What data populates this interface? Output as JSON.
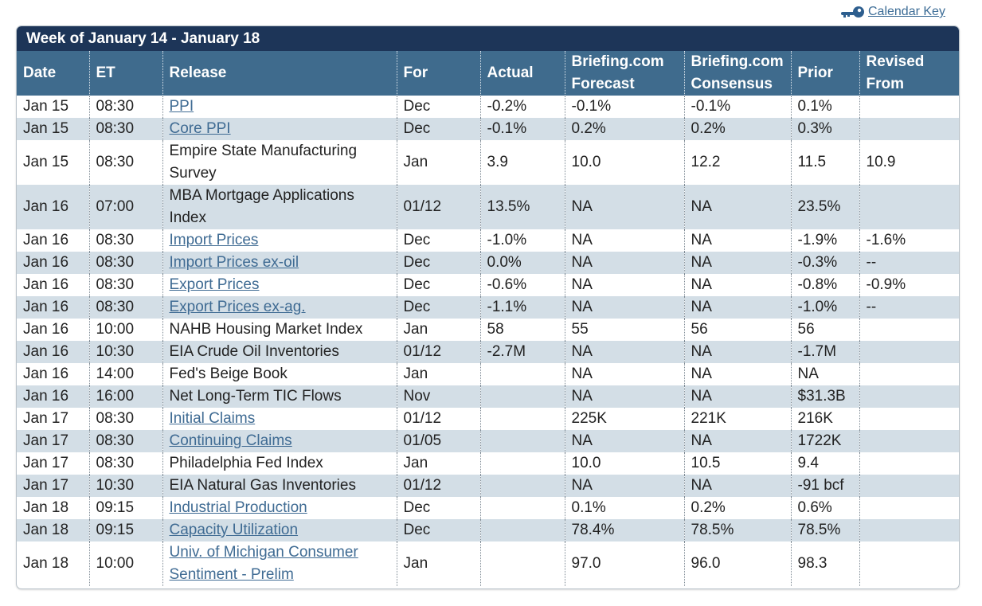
{
  "calendar_key": {
    "label": "Calendar Key",
    "icon": "key-icon"
  },
  "week_title": "Week of January 14 - January 18",
  "columns": [
    {
      "label": "Date"
    },
    {
      "label": "ET"
    },
    {
      "label": "Release"
    },
    {
      "label": "For"
    },
    {
      "label": "Actual"
    },
    {
      "label": "Briefing.com Forecast"
    },
    {
      "label": "Briefing.com Consensus"
    },
    {
      "label": "Prior"
    },
    {
      "label": "Revised From"
    }
  ],
  "rows": [
    {
      "date": "Jan 15",
      "et": "08:30",
      "release": "PPI",
      "link": true,
      "for": "Dec",
      "actual": "-0.2%",
      "forecast": "-0.1%",
      "consensus": "-0.1%",
      "prior": "0.1%",
      "revised": ""
    },
    {
      "date": "Jan 15",
      "et": "08:30",
      "release": "Core PPI",
      "link": true,
      "for": "Dec",
      "actual": "-0.1%",
      "forecast": "0.2%",
      "consensus": "0.2%",
      "prior": "0.3%",
      "revised": ""
    },
    {
      "date": "Jan 15",
      "et": "08:30",
      "release": "Empire State Manufacturing Survey",
      "link": false,
      "tall": true,
      "for": "Jan",
      "actual": "3.9",
      "forecast": "10.0",
      "consensus": "12.2",
      "prior": "11.5",
      "revised": "10.9"
    },
    {
      "date": "Jan 16",
      "et": "07:00",
      "release": "MBA Mortgage Applications Index",
      "link": false,
      "tall": true,
      "for": "01/12",
      "actual": "13.5%",
      "forecast": "NA",
      "consensus": "NA",
      "prior": "23.5%",
      "revised": ""
    },
    {
      "date": "Jan 16",
      "et": "08:30",
      "release": "Import Prices",
      "link": true,
      "for": "Dec",
      "actual": "-1.0%",
      "forecast": "NA",
      "consensus": "NA",
      "prior": "-1.9%",
      "revised": "-1.6%"
    },
    {
      "date": "Jan 16",
      "et": "08:30",
      "release": "Import Prices ex-oil",
      "link": true,
      "for": "Dec",
      "actual": "0.0%",
      "forecast": "NA",
      "consensus": "NA",
      "prior": "-0.3%",
      "revised": "--"
    },
    {
      "date": "Jan 16",
      "et": "08:30",
      "release": "Export Prices",
      "link": true,
      "for": "Dec",
      "actual": "-0.6%",
      "forecast": "NA",
      "consensus": "NA",
      "prior": "-0.8%",
      "revised": "-0.9%"
    },
    {
      "date": "Jan 16",
      "et": "08:30",
      "release": "Export Prices ex-ag.",
      "link": true,
      "for": "Dec",
      "actual": "-1.1%",
      "forecast": "NA",
      "consensus": "NA",
      "prior": "-1.0%",
      "revised": "--"
    },
    {
      "date": "Jan 16",
      "et": "10:00",
      "release": "NAHB Housing Market Index",
      "link": false,
      "for": "Jan",
      "actual": "58",
      "forecast": "55",
      "consensus": "56",
      "prior": "56",
      "revised": ""
    },
    {
      "date": "Jan 16",
      "et": "10:30",
      "release": "EIA Crude Oil Inventories",
      "link": false,
      "for": "01/12",
      "actual": "-2.7M",
      "forecast": "NA",
      "consensus": "NA",
      "prior": "-1.7M",
      "revised": ""
    },
    {
      "date": "Jan 16",
      "et": "14:00",
      "release": "Fed's Beige Book",
      "link": false,
      "for": "Jan",
      "actual": "",
      "forecast": "NA",
      "consensus": "NA",
      "prior": "NA",
      "revised": ""
    },
    {
      "date": "Jan 16",
      "et": "16:00",
      "release": "Net Long-Term TIC Flows",
      "link": false,
      "for": "Nov",
      "actual": "",
      "forecast": "NA",
      "consensus": "NA",
      "prior": "$31.3B",
      "revised": ""
    },
    {
      "date": "Jan 17",
      "et": "08:30",
      "release": "Initial Claims",
      "link": true,
      "for": "01/12",
      "actual": "",
      "forecast": "225K",
      "consensus": "221K",
      "prior": "216K",
      "revised": ""
    },
    {
      "date": "Jan 17",
      "et": "08:30",
      "release": "Continuing Claims",
      "link": true,
      "for": "01/05",
      "actual": "",
      "forecast": "NA",
      "consensus": "NA",
      "prior": "1722K",
      "revised": ""
    },
    {
      "date": "Jan 17",
      "et": "08:30",
      "release": "Philadelphia Fed Index",
      "link": false,
      "for": "Jan",
      "actual": "",
      "forecast": "10.0",
      "consensus": "10.5",
      "prior": "9.4",
      "revised": ""
    },
    {
      "date": "Jan 17",
      "et": "10:30",
      "release": "EIA Natural Gas Inventories",
      "link": false,
      "for": "01/12",
      "actual": "",
      "forecast": "NA",
      "consensus": "NA",
      "prior": "-91 bcf",
      "revised": ""
    },
    {
      "date": "Jan 18",
      "et": "09:15",
      "release": "Industrial Production",
      "link": true,
      "for": "Dec",
      "actual": "",
      "forecast": "0.1%",
      "consensus": "0.2%",
      "prior": "0.6%",
      "revised": ""
    },
    {
      "date": "Jan 18",
      "et": "09:15",
      "release": "Capacity Utilization",
      "link": true,
      "for": "Dec",
      "actual": "",
      "forecast": "78.4%",
      "consensus": "78.5%",
      "prior": "78.5%",
      "revised": ""
    },
    {
      "date": "Jan 18",
      "et": "10:00",
      "release": "Univ. of Michigan Consumer Sentiment - Prelim",
      "link": true,
      "tall": true,
      "for": "Jan",
      "actual": "",
      "forecast": "97.0",
      "consensus": "96.0",
      "prior": "98.3",
      "revised": ""
    }
  ]
}
